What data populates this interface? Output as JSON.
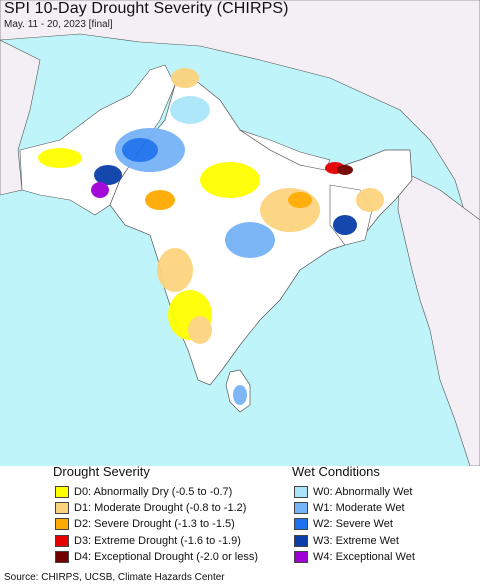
{
  "header": {
    "title": "SPI 10-Day Drought Severity (CHIRPS)",
    "subtitle": "May. 11 - 20, 2023 [final]"
  },
  "colors": {
    "ocean": "#bff4fb",
    "land_neutral": "#f3eff4",
    "india_land": "#ffffff",
    "border": "#444444"
  },
  "legend": {
    "drought": {
      "title": "Drought Severity",
      "items": [
        {
          "label": "D0: Abnormally Dry (-0.5 to -0.7)",
          "color": "#ffff00"
        },
        {
          "label": "D1: Moderate Drought (-0.8 to -1.2)",
          "color": "#fcd37f"
        },
        {
          "label": "D2: Severe Drought (-1.3 to -1.5)",
          "color": "#ffaa00"
        },
        {
          "label": "D3: Extreme Drought (-1.6 to -1.9)",
          "color": "#e60000"
        },
        {
          "label": "D4: Exceptional Drought (-2.0 or less)",
          "color": "#730000"
        }
      ]
    },
    "wet": {
      "title": "Wet Conditions",
      "items": [
        {
          "label": "W0: Abnormally Wet",
          "color": "#aae5fa"
        },
        {
          "label": "W1: Moderate Wet",
          "color": "#77b3f7"
        },
        {
          "label": "W2: Severe Wet",
          "color": "#1d72ed"
        },
        {
          "label": "W3: Extreme Wet",
          "color": "#0a3ea8"
        },
        {
          "label": "W4: Exceptional Wet",
          "color": "#9f00d6"
        }
      ]
    }
  },
  "footer": {
    "source": "Source: CHIRPS, UCSB, Climate Hazards Center"
  }
}
